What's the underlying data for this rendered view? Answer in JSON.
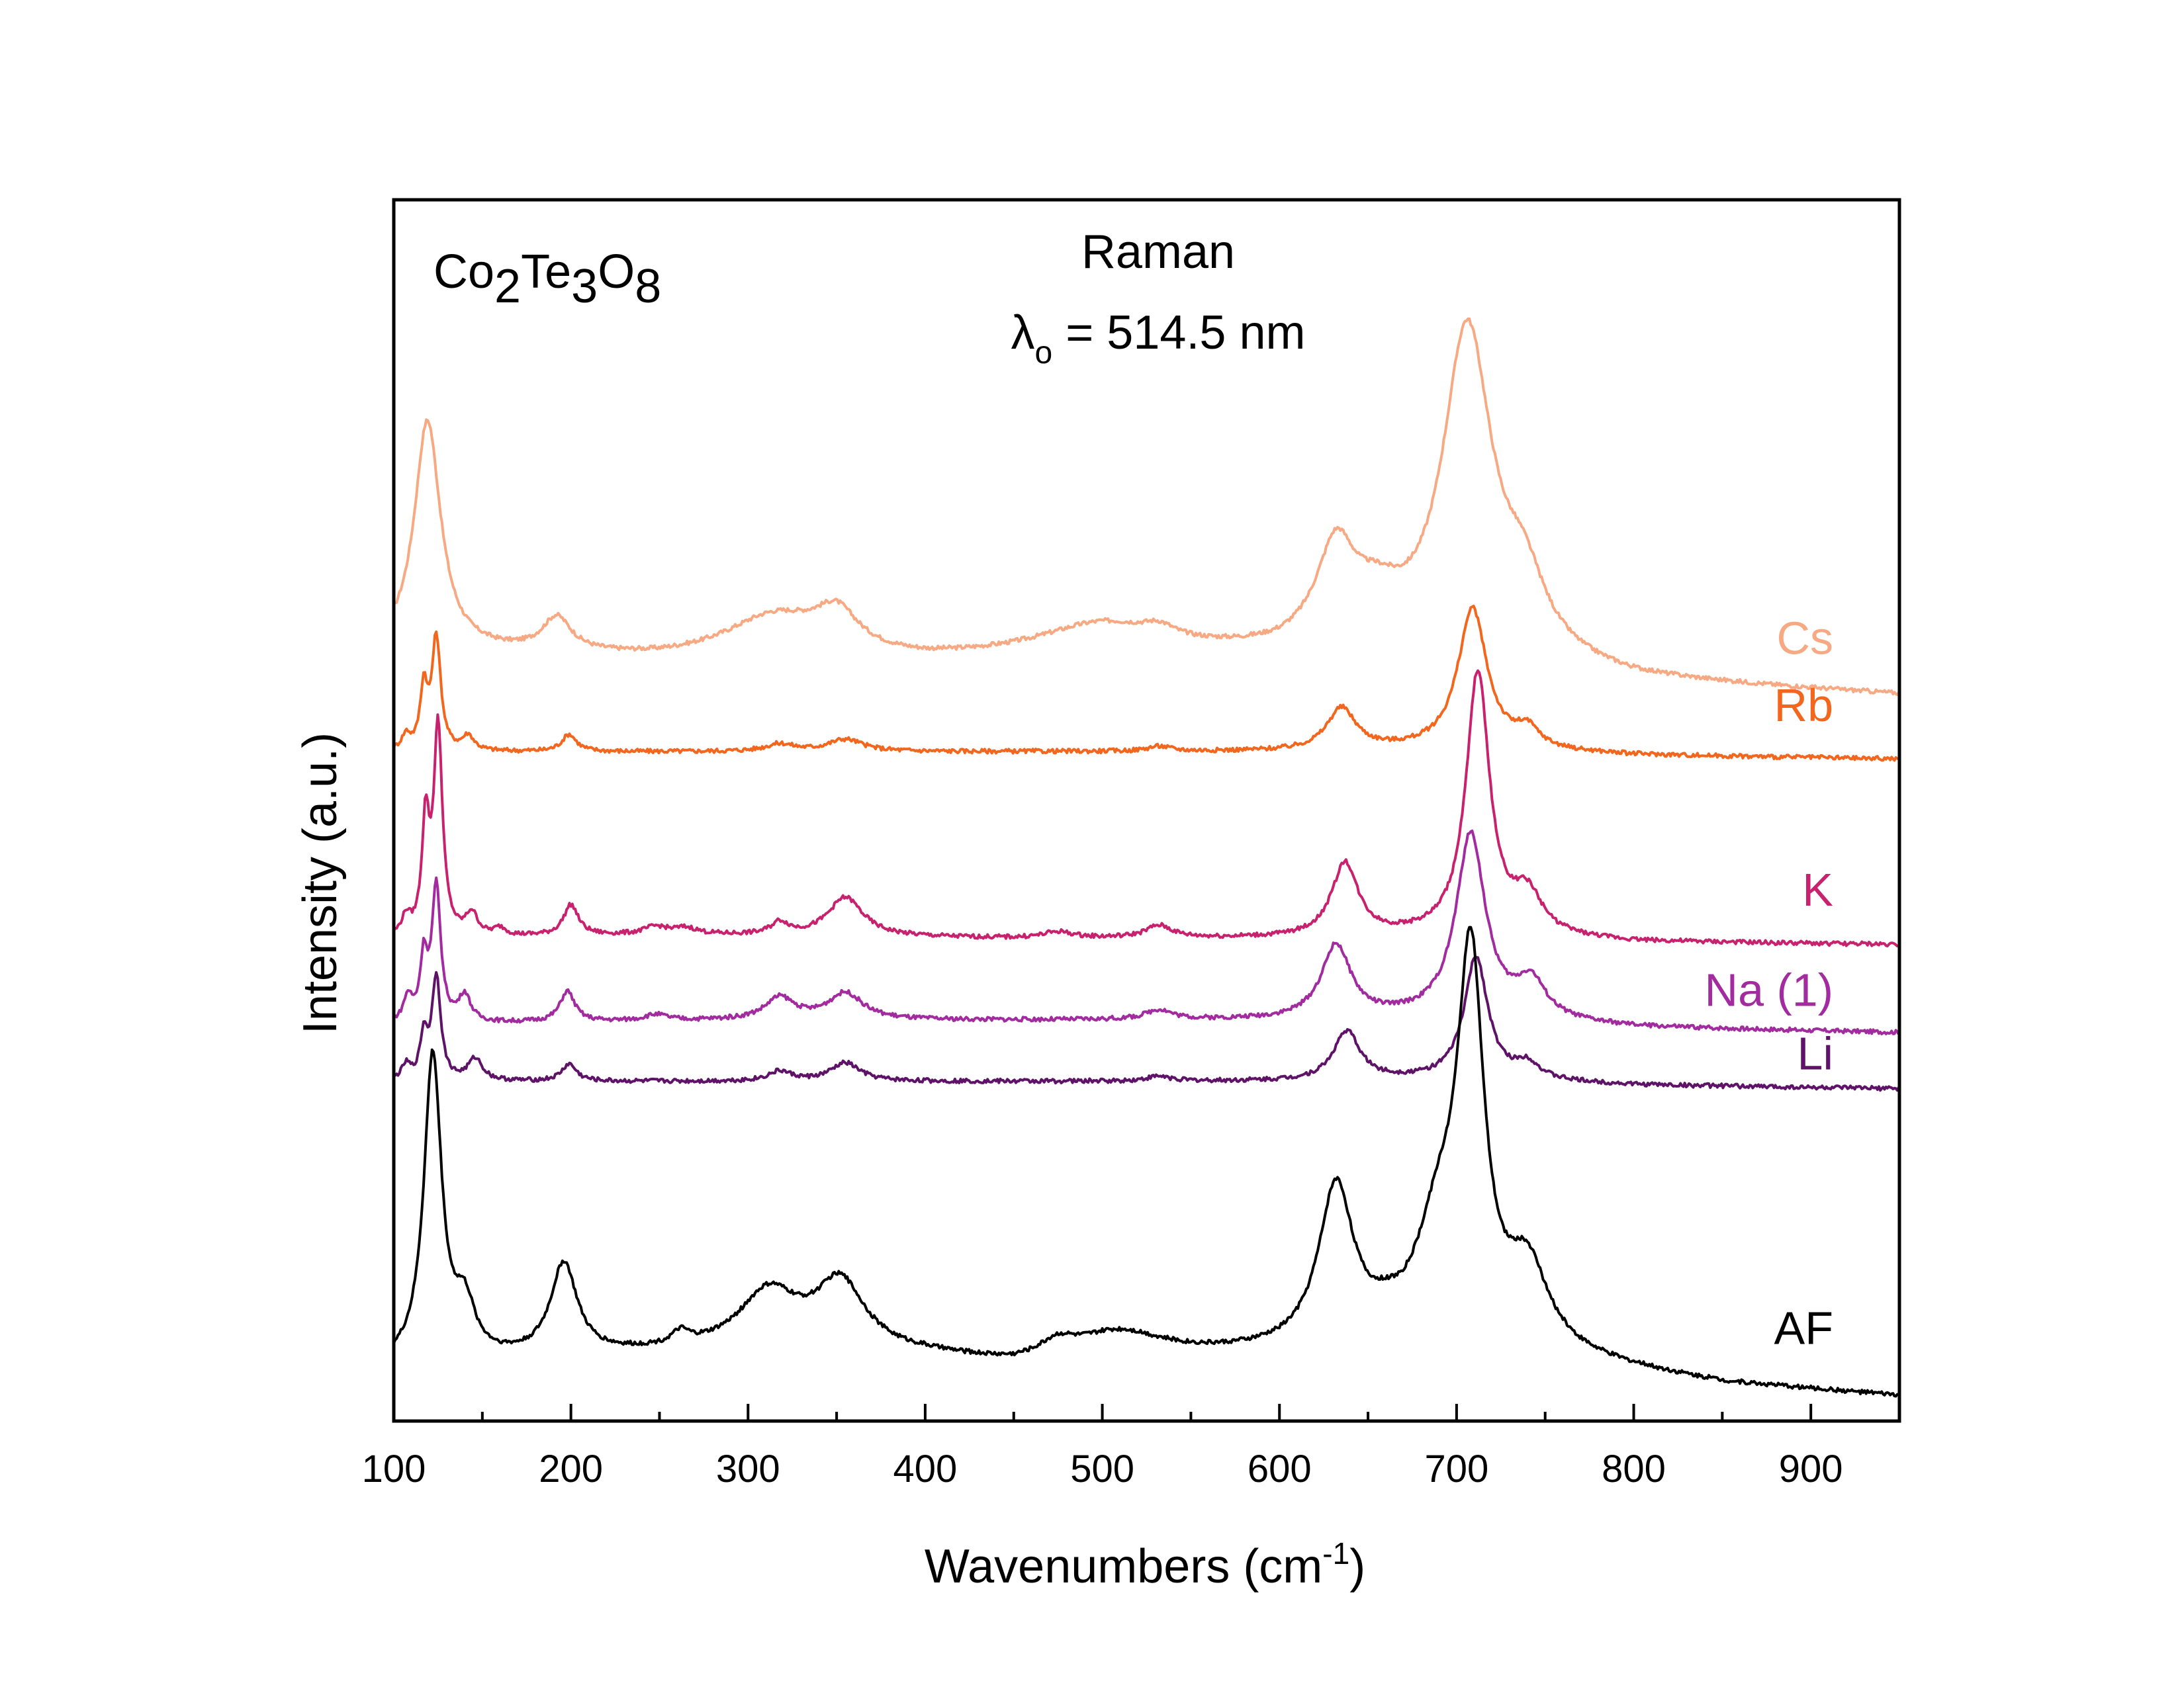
{
  "chart_data": {
    "type": "line",
    "title": "",
    "annotations": {
      "compound": "Co2Te3O8",
      "compound_parts": [
        {
          "text": "Co",
          "sub": false
        },
        {
          "text": "2",
          "sub": true
        },
        {
          "text": "Te",
          "sub": false
        },
        {
          "text": "3",
          "sub": true
        },
        {
          "text": "O",
          "sub": false
        },
        {
          "text": "8",
          "sub": true
        }
      ],
      "method": "Raman",
      "wavelength_symbol": "λ",
      "wavelength_sub": "o",
      "wavelength_text": " = 514.5 nm"
    },
    "xlabel": "Wavenumbers (cm",
    "xlabel_sup": "-1",
    "xlabel_end": ")",
    "ylabel": "Intensity (a.u.)",
    "xlim": [
      100,
      950
    ],
    "ylim": [
      0,
      1
    ],
    "x_ticks": [
      100,
      200,
      300,
      400,
      500,
      600,
      700,
      800,
      900
    ],
    "x_tick_labels": [
      "100",
      "200",
      "300",
      "400",
      "500",
      "600",
      "700",
      "800",
      "900"
    ],
    "x_minor_step": 50,
    "y_ticks_shown": false,
    "grid": false,
    "legend": "inline labels at right of each trace",
    "stacked_offsets": true,
    "series": [
      {
        "name": "Cs",
        "color": "#F7A983",
        "baseline": [
          [
            100,
            0.63
          ],
          [
            150,
            0.628
          ],
          [
            250,
            0.622
          ],
          [
            400,
            0.62
          ],
          [
            500,
            0.625
          ],
          [
            600,
            0.625
          ],
          [
            620,
            0.628
          ],
          [
            720,
            0.62
          ],
          [
            800,
            0.605
          ],
          [
            950,
            0.594
          ]
        ],
        "peaks": [
          [
            119,
            0.188,
            9
          ],
          [
            192,
            0.028,
            10
          ],
          [
            315,
            0.035,
            35
          ],
          [
            350,
            0.03,
            15
          ],
          [
            500,
            0.025,
            45
          ],
          [
            532,
            0.008,
            10
          ],
          [
            632,
            0.075,
            13
          ],
          [
            655,
            0.03,
            18
          ],
          [
            706,
            0.265,
            17
          ],
          [
            738,
            0.05,
            15
          ]
        ]
      },
      {
        "name": "Rb",
        "color": "#F2661E",
        "baseline": [
          [
            100,
            0.548
          ],
          [
            300,
            0.548
          ],
          [
            600,
            0.548
          ],
          [
            700,
            0.55
          ],
          [
            800,
            0.545
          ],
          [
            950,
            0.542
          ]
        ],
        "peaks": [
          [
            107,
            0.012,
            3
          ],
          [
            117,
            0.05,
            2.5
          ],
          [
            124,
            0.092,
            3
          ],
          [
            142,
            0.012,
            4
          ],
          [
            199,
            0.014,
            5
          ],
          [
            318,
            0.006,
            10
          ],
          [
            355,
            0.01,
            12
          ],
          [
            532,
            0.004,
            8
          ],
          [
            635,
            0.034,
            10
          ],
          [
            709,
            0.115,
            10
          ],
          [
            740,
            0.015,
            8
          ]
        ]
      },
      {
        "name": "K",
        "color": "#C8226E",
        "baseline": [
          [
            100,
            0.395
          ],
          [
            250,
            0.398
          ],
          [
            450,
            0.395
          ],
          [
            600,
            0.395
          ],
          [
            700,
            0.397
          ],
          [
            800,
            0.392
          ],
          [
            950,
            0.39
          ]
        ],
        "peaks": [
          [
            107,
            0.015,
            3
          ],
          [
            118,
            0.09,
            2.5
          ],
          [
            125,
            0.17,
            3
          ],
          [
            144,
            0.018,
            4
          ],
          [
            160,
            0.006,
            4
          ],
          [
            200,
            0.025,
            5
          ],
          [
            248,
            0.006,
            8
          ],
          [
            265,
            0.005,
            8
          ],
          [
            318,
            0.01,
            6
          ],
          [
            355,
            0.032,
            12
          ],
          [
            475,
            0.005,
            10
          ],
          [
            532,
            0.01,
            9
          ],
          [
            637,
            0.06,
            9
          ],
          [
            712,
            0.215,
            8
          ],
          [
            740,
            0.032,
            10
          ]
        ]
      },
      {
        "name": "Na (1)",
        "color": "#A22BA0",
        "baseline": [
          [
            100,
            0.325
          ],
          [
            300,
            0.328
          ],
          [
            600,
            0.328
          ],
          [
            700,
            0.33
          ],
          [
            800,
            0.322
          ],
          [
            950,
            0.318
          ]
        ],
        "peaks": [
          [
            108,
            0.02,
            3
          ],
          [
            117,
            0.05,
            2.5
          ],
          [
            124,
            0.11,
            3
          ],
          [
            140,
            0.022,
            4
          ],
          [
            198,
            0.025,
            5
          ],
          [
            248,
            0.005,
            8
          ],
          [
            318,
            0.018,
            10
          ],
          [
            355,
            0.022,
            12
          ],
          [
            532,
            0.008,
            9
          ],
          [
            632,
            0.06,
            10
          ],
          [
            708,
            0.15,
            10
          ],
          [
            742,
            0.03,
            10
          ]
        ]
      },
      {
        "name": "Li",
        "color": "#5E1268",
        "baseline": [
          [
            100,
            0.278
          ],
          [
            300,
            0.278
          ],
          [
            600,
            0.278
          ],
          [
            700,
            0.28
          ],
          [
            800,
            0.275
          ],
          [
            950,
            0.272
          ]
        ],
        "peaks": [
          [
            107,
            0.012,
            3
          ],
          [
            117,
            0.035,
            2.5
          ],
          [
            124,
            0.085,
            3
          ],
          [
            146,
            0.018,
            5
          ],
          [
            199,
            0.014,
            5
          ],
          [
            318,
            0.008,
            8
          ],
          [
            355,
            0.015,
            10
          ],
          [
            532,
            0.004,
            8
          ],
          [
            638,
            0.04,
            9
          ],
          [
            711,
            0.1,
            8
          ],
          [
            740,
            0.013,
            8
          ]
        ]
      },
      {
        "name": "AF",
        "color": "#000000",
        "baseline": [
          [
            100,
            0.045
          ],
          [
            170,
            0.05
          ],
          [
            300,
            0.058
          ],
          [
            400,
            0.052
          ],
          [
            450,
            0.045
          ],
          [
            500,
            0.05
          ],
          [
            560,
            0.052
          ],
          [
            650,
            0.055
          ],
          [
            760,
            0.048
          ],
          [
            850,
            0.03
          ],
          [
            950,
            0.02
          ]
        ],
        "peaks": [
          [
            122,
            0.25,
            6
          ],
          [
            140,
            0.04,
            7
          ],
          [
            196,
            0.075,
            9
          ],
          [
            262,
            0.01,
            6
          ],
          [
            312,
            0.045,
            20
          ],
          [
            352,
            0.055,
            17
          ],
          [
            475,
            0.012,
            12
          ],
          [
            510,
            0.02,
            30
          ],
          [
            632,
            0.13,
            12
          ],
          [
            660,
            0.01,
            10
          ],
          [
            690,
            0.09,
            16
          ],
          [
            708,
            0.3,
            9
          ],
          [
            740,
            0.065,
            14
          ]
        ]
      }
    ],
    "series_label_y": [
      0.628,
      0.573,
      0.422,
      0.34,
      0.288,
      0.063
    ]
  }
}
